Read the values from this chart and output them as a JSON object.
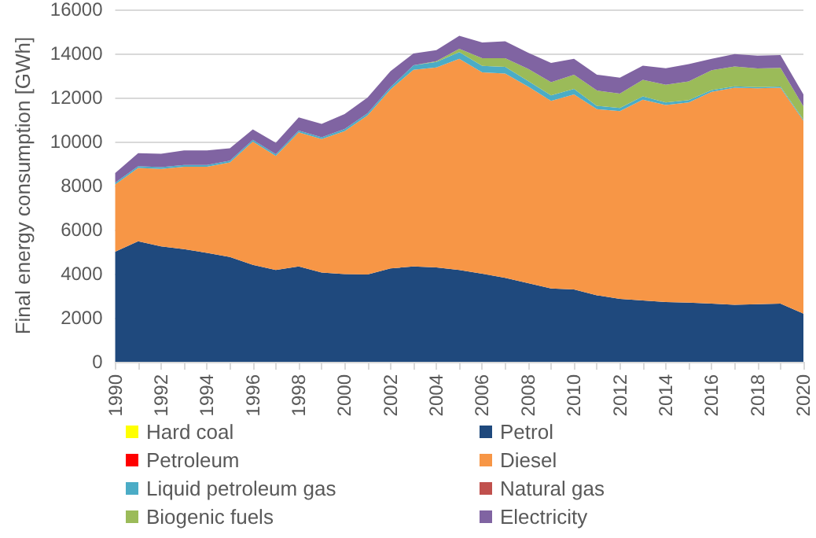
{
  "chart_data": {
    "type": "area",
    "stacked": true,
    "ylabel": "Final energy consumption [GWh]",
    "categories": [
      "1990",
      null,
      "1992",
      null,
      "1994",
      null,
      "1996",
      null,
      "1998",
      null,
      "2000",
      null,
      "2002",
      null,
      "2004",
      null,
      "2006",
      null,
      "2008",
      null,
      "2010",
      null,
      "2012",
      null,
      "2014",
      null,
      "2016",
      null,
      "2018",
      null,
      "2020"
    ],
    "ylim": [
      0,
      16000
    ],
    "yticks": [
      0,
      2000,
      4000,
      6000,
      8000,
      10000,
      12000,
      14000,
      16000
    ],
    "grid": "y",
    "legend": "bottom",
    "series": [
      {
        "name": "Hard coal",
        "color": "#ffff00",
        "values": [
          null,
          null,
          null,
          null,
          null,
          null,
          null,
          null,
          null,
          null,
          null,
          null,
          null,
          null,
          null,
          null,
          null,
          null,
          null,
          null,
          null,
          null,
          null,
          null,
          null,
          null,
          null,
          null,
          null,
          null,
          null
        ]
      },
      {
        "name": "Petrol",
        "color": "#1f497d",
        "values": [
          5000,
          5470,
          5240,
          5120,
          4950,
          4760,
          4400,
          4170,
          4330,
          4050,
          3980,
          3960,
          4240,
          4330,
          4290,
          4170,
          4000,
          3810,
          3570,
          3330,
          3290,
          3020,
          2860,
          2790,
          2710,
          2690,
          2640,
          2590,
          2620,
          2640,
          2190
        ]
      },
      {
        "name": "Petroleum",
        "color": "#ff0000",
        "values": [
          null,
          null,
          null,
          null,
          null,
          null,
          null,
          null,
          null,
          null,
          null,
          null,
          null,
          null,
          null,
          null,
          null,
          null,
          null,
          null,
          null,
          null,
          null,
          null,
          null,
          null,
          null,
          null,
          null,
          null,
          null
        ]
      },
      {
        "name": "Diesel",
        "color": "#f79646",
        "values": [
          3050,
          3330,
          3520,
          3740,
          3910,
          4290,
          5600,
          5180,
          6090,
          6070,
          6490,
          7230,
          8130,
          8930,
          9080,
          9590,
          9140,
          9280,
          8930,
          8520,
          8850,
          8450,
          8520,
          9110,
          8950,
          9090,
          9620,
          9860,
          9800,
          9810,
          8760
        ]
      },
      {
        "name": "Liquid petroleum gas",
        "color": "#4bacc6",
        "values": [
          80,
          80,
          80,
          80,
          80,
          80,
          80,
          80,
          80,
          80,
          100,
          100,
          100,
          200,
          250,
          300,
          300,
          300,
          250,
          250,
          250,
          150,
          150,
          150,
          120,
          100,
          80,
          60,
          50,
          50,
          50
        ]
      },
      {
        "name": "Natural gas",
        "color": "#c0504d",
        "values": [
          null,
          null,
          null,
          null,
          null,
          null,
          null,
          null,
          null,
          null,
          null,
          null,
          null,
          null,
          null,
          null,
          null,
          null,
          null,
          null,
          null,
          null,
          null,
          null,
          null,
          null,
          null,
          null,
          null,
          null,
          null
        ]
      },
      {
        "name": "Biogenic fuels",
        "color": "#9bbb59",
        "values": [
          0,
          0,
          0,
          0,
          0,
          0,
          0,
          0,
          0,
          0,
          0,
          0,
          0,
          0,
          30,
          150,
          350,
          400,
          550,
          600,
          650,
          700,
          650,
          750,
          800,
          850,
          900,
          900,
          850,
          850,
          600
        ]
      },
      {
        "name": "Electricity",
        "color": "#8064a2",
        "values": [
          440,
          590,
          610,
          660,
          660,
          570,
          470,
          520,
          600,
          600,
          680,
          710,
          730,
          540,
          500,
          590,
          710,
          760,
          740,
          870,
          720,
          720,
          720,
          650,
          750,
          790,
          520,
          560,
          580,
          580,
          540
        ]
      }
    ]
  }
}
